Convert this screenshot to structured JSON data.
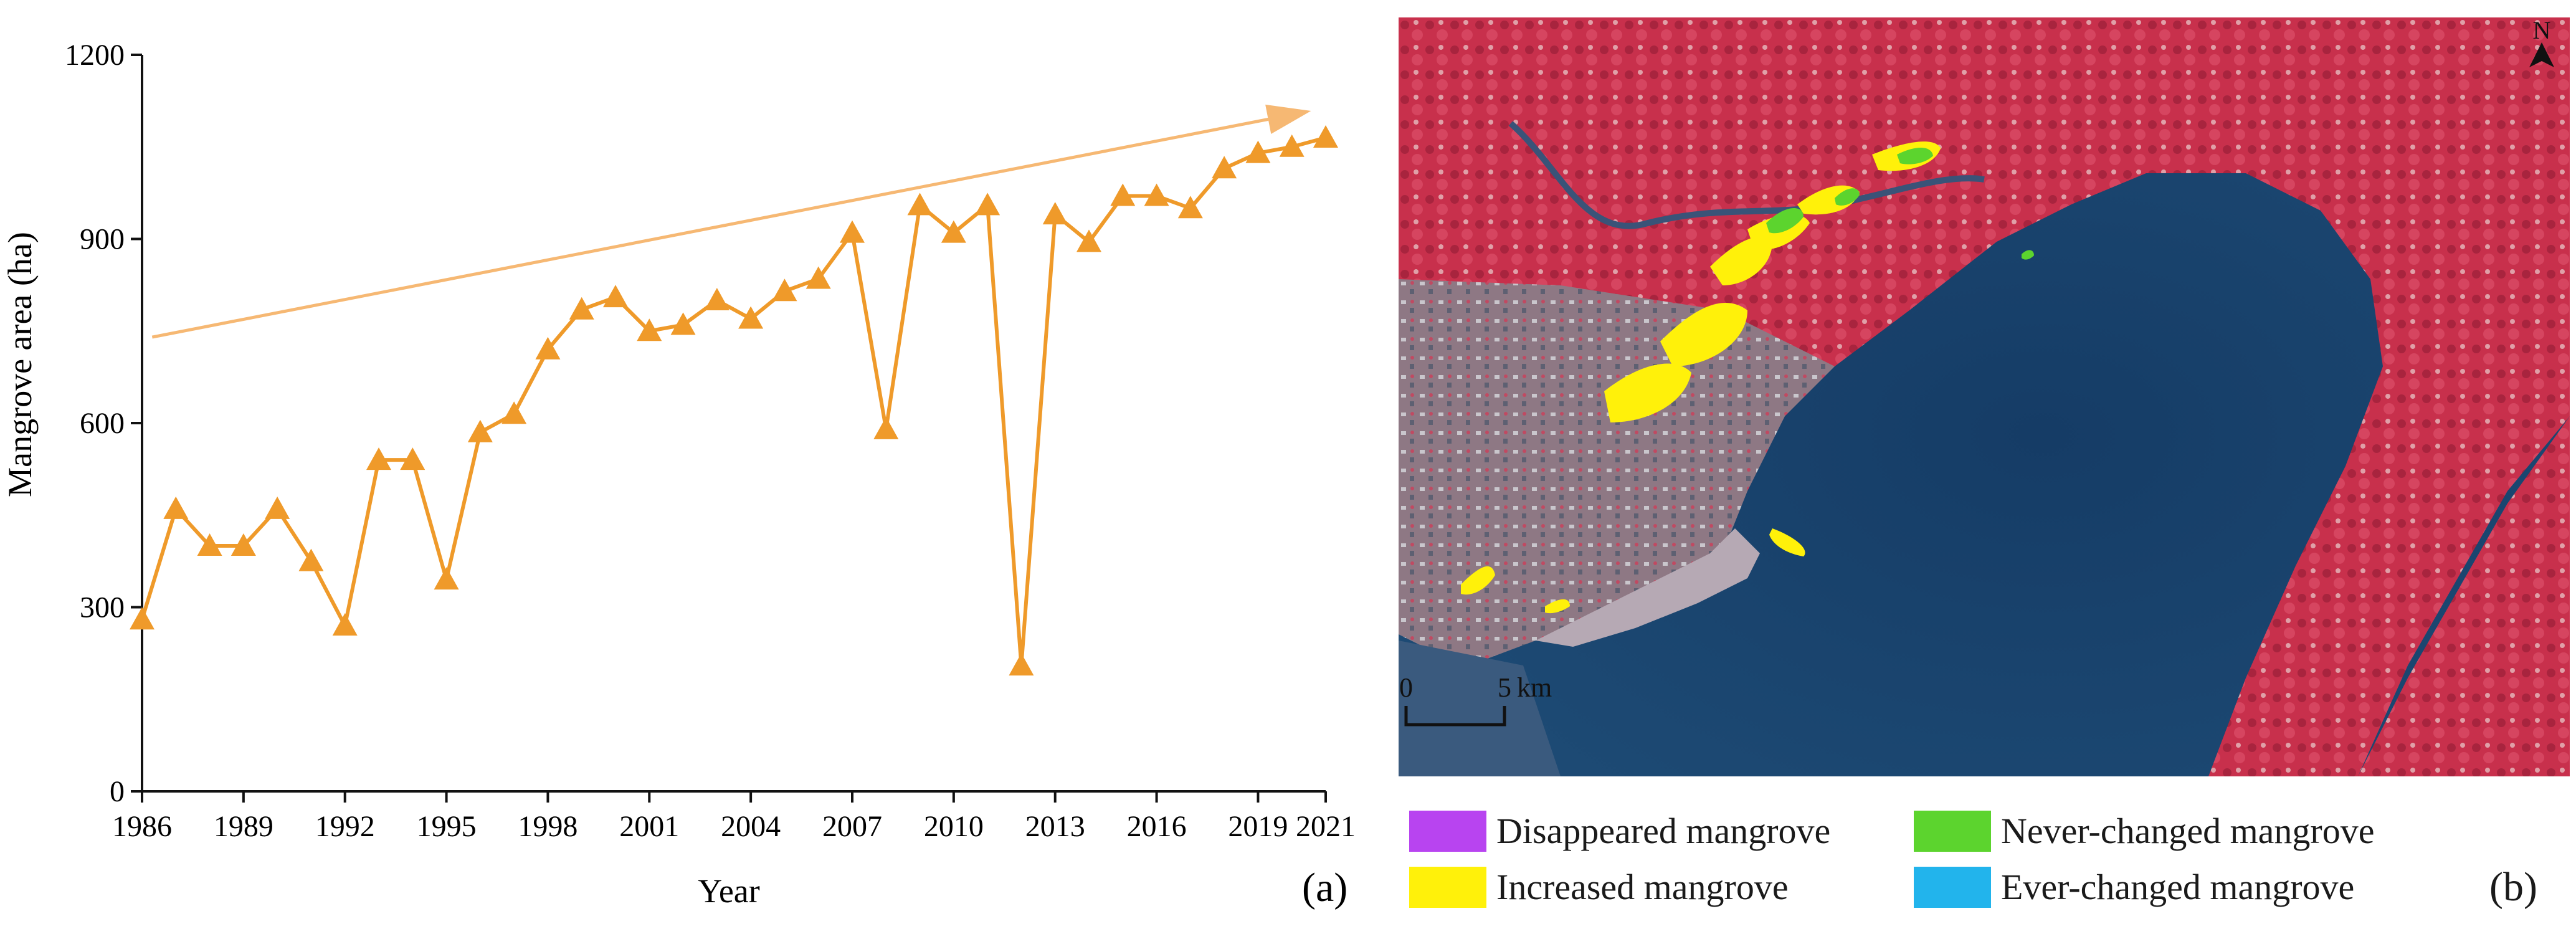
{
  "chart_data": {
    "type": "line",
    "xlabel": "Year",
    "ylabel": "Mangrove area (ha)",
    "xlim": [
      1986,
      2021
    ],
    "ylim": [
      0,
      1200
    ],
    "xticks": [
      "1986",
      "1989",
      "1992",
      "1995",
      "1998",
      "2001",
      "2004",
      "2007",
      "2010",
      "2013",
      "2016",
      "2019",
      "2021"
    ],
    "yticks": [
      "0",
      "300",
      "600",
      "900",
      "1200"
    ],
    "x": [
      1986,
      1987,
      1988,
      1989,
      1990,
      1991,
      1992,
      1993,
      1994,
      1995,
      1996,
      1997,
      1998,
      1999,
      2000,
      2001,
      2002,
      2003,
      2004,
      2005,
      2006,
      2007,
      2008,
      2009,
      2010,
      2011,
      2012,
      2013,
      2014,
      2015,
      2016,
      2017,
      2018,
      2019,
      2020,
      2021
    ],
    "values": [
      280,
      460,
      400,
      400,
      460,
      375,
      270,
      540,
      540,
      345,
      585,
      615,
      720,
      785,
      805,
      750,
      760,
      800,
      770,
      815,
      835,
      910,
      590,
      955,
      910,
      955,
      205,
      940,
      895,
      970,
      970,
      950,
      1015,
      1040,
      1050,
      1065
    ],
    "series_color": "#ef9a2a",
    "trend_color": "#f6b873",
    "grid": false,
    "panel_label": "(a)"
  },
  "map": {
    "north_label": "N",
    "scale_bar": {
      "zero": "0",
      "five": "5",
      "unit": "km"
    },
    "panel_label": "(b)"
  },
  "legend": [
    {
      "label": "Disappeared mangrove",
      "color": "#b844f0"
    },
    {
      "label": "Never-changed mangrove",
      "color": "#5cd42e"
    },
    {
      "label": "Increased mangrove",
      "color": "#fff10a"
    },
    {
      "label": "Ever-changed mangrove",
      "color": "#22b4ec"
    }
  ]
}
